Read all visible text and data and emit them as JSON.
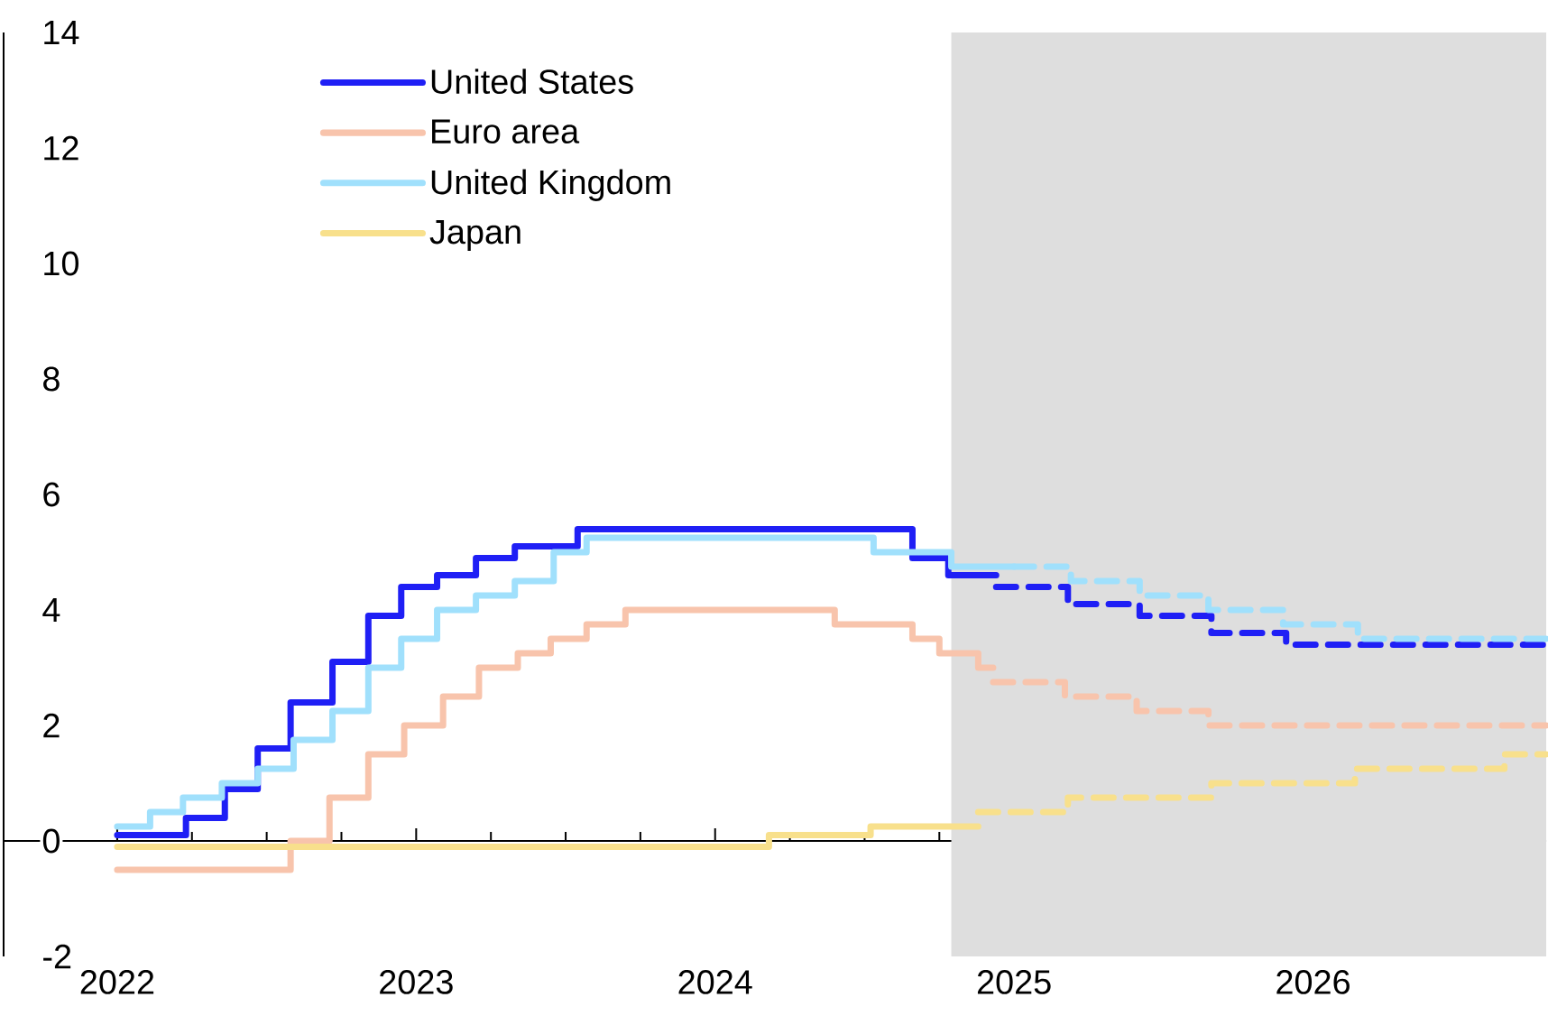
{
  "chart_data": {
    "type": "step",
    "xlim": [
      2021.62,
      2026.78
    ],
    "ylim": [
      -2,
      14
    ],
    "xticks": [
      2022,
      {
        "value": 2022.25,
        "label": null
      },
      {
        "value": 2022.5,
        "label": null
      },
      {
        "value": 2022.75,
        "label": null
      },
      2023,
      {
        "value": 2023.25,
        "label": null
      },
      {
        "value": 2023.5,
        "label": null
      },
      {
        "value": 2023.75,
        "label": null
      },
      2024,
      {
        "value": 2024.25,
        "label": null
      },
      {
        "value": 2024.5,
        "label": null
      },
      {
        "value": 2024.75,
        "label": null
      },
      2025,
      {
        "value": 2025.25,
        "label": null
      },
      {
        "value": 2025.5,
        "label": null
      },
      {
        "value": 2025.75,
        "label": null
      },
      2026,
      {
        "value": 2026.25,
        "label": null
      },
      {
        "value": 2026.5,
        "label": null
      },
      {
        "value": 2026.75,
        "label": null
      }
    ],
    "yticks": [
      -2,
      0,
      2,
      4,
      6,
      8,
      10,
      12,
      14
    ],
    "legend": "top left",
    "bands": [
      {
        "axis": "x",
        "from": 2024.79,
        "to": 2026.78,
        "color": "#dedede"
      }
    ],
    "series": [
      {
        "name": "United States",
        "color": "#1f1ff5",
        "line_style": "solid",
        "x": [
          2022,
          2022.23,
          2022.36,
          2022.47,
          2022.58,
          2022.72,
          2022.84,
          2022.95,
          2023.07,
          2023.2,
          2023.33,
          2023.54,
          2024.66,
          2024.78,
          2024.94
        ],
        "values": [
          0.1,
          0.4,
          0.9,
          1.6,
          2.4,
          3.1,
          3.9,
          4.4,
          4.6,
          4.9,
          5.1,
          5.4,
          4.9,
          4.6,
          4.6
        ]
      },
      {
        "name": "Euro area",
        "color": "#f8c4ac",
        "line_style": "solid",
        "x": [
          2022,
          2022.58,
          2022.71,
          2022.84,
          2022.96,
          2023.09,
          2023.21,
          2023.34,
          2023.45,
          2023.57,
          2023.7,
          2024.4,
          2024.66,
          2024.75,
          2024.88,
          2024.93
        ],
        "values": [
          -0.5,
          0,
          0.75,
          1.5,
          2.0,
          2.5,
          3.0,
          3.25,
          3.5,
          3.75,
          4.0,
          3.75,
          3.5,
          3.25,
          3.0,
          3.0
        ]
      },
      {
        "name": "United Kingdom",
        "color": "#a0e0fc",
        "line_style": "solid",
        "x": [
          2022,
          2022.11,
          2022.22,
          2022.35,
          2022.47,
          2022.59,
          2022.72,
          2022.84,
          2022.95,
          2023.07,
          2023.2,
          2023.33,
          2023.46,
          2023.57,
          2024.53,
          2024.79,
          2025.0
        ],
        "values": [
          0.25,
          0.5,
          0.75,
          1.0,
          1.25,
          1.75,
          2.25,
          3.0,
          3.5,
          4.0,
          4.25,
          4.5,
          5.0,
          5.25,
          5.0,
          4.75,
          4.75
        ]
      },
      {
        "name": "Japan",
        "color": "#f8e08c",
        "line_style": "solid",
        "x": [
          2022,
          2024.18,
          2024.52,
          2024.88
        ],
        "values": [
          -0.1,
          0.1,
          0.25,
          0.25
        ]
      },
      {
        "color": "#1f1ff5",
        "line_style": "dashed",
        "x": [
          2024.94,
          2025.18,
          2025.42,
          2025.66,
          2025.91,
          2026.78
        ],
        "values": [
          4.4,
          4.1,
          3.9,
          3.6,
          3.4,
          3.4
        ]
      },
      {
        "color": "#f8c4ac",
        "line_style": "dashed",
        "x": [
          2024.93,
          2025.17,
          2025.41,
          2025.65,
          2026.78
        ],
        "values": [
          2.75,
          2.5,
          2.25,
          2.0,
          2.0
        ]
      },
      {
        "color": "#a0e0fc",
        "line_style": "dashed",
        "x": [
          2025.0,
          2025.19,
          2025.42,
          2025.65,
          2025.9,
          2026.15,
          2026.78
        ],
        "values": [
          4.75,
          4.5,
          4.25,
          4.0,
          3.75,
          3.5,
          3.5
        ]
      },
      {
        "color": "#f8e08c",
        "line_style": "dashed",
        "x": [
          2024.88,
          2025.18,
          2025.66,
          2026.14,
          2026.64,
          2026.78
        ],
        "values": [
          0.5,
          0.75,
          1.0,
          1.25,
          1.5,
          1.5
        ]
      }
    ]
  }
}
